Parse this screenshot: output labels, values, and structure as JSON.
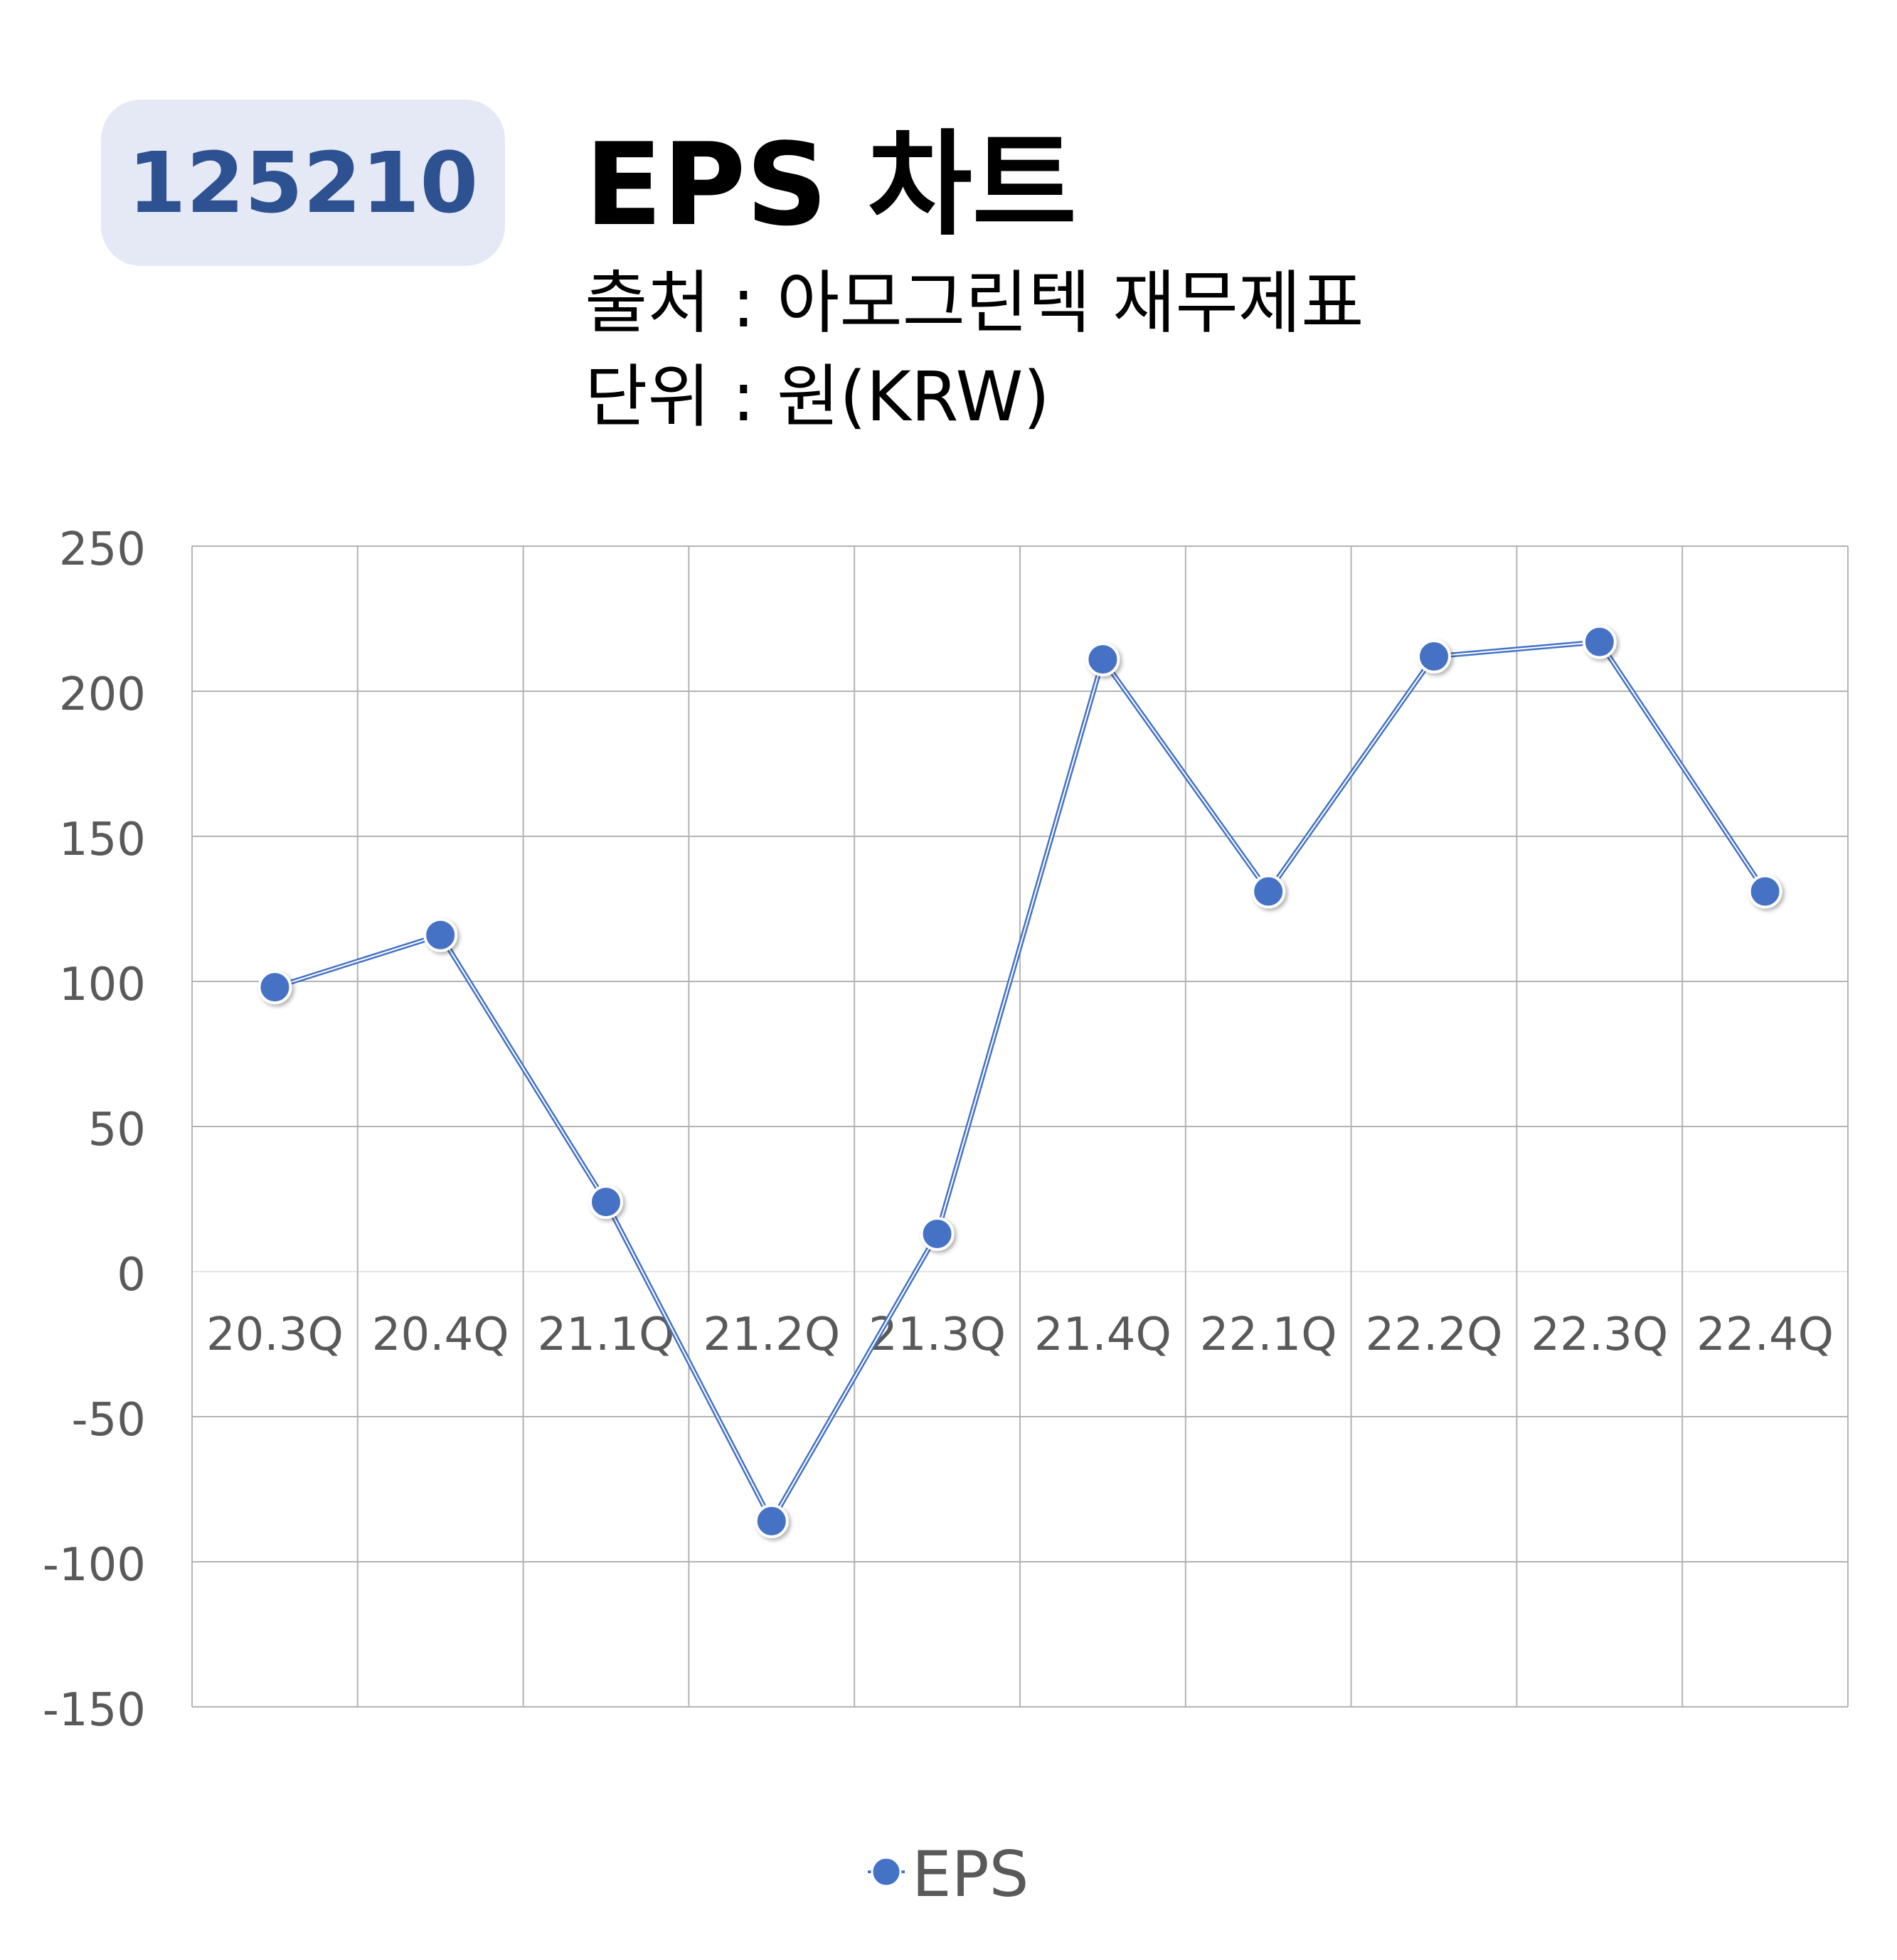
{
  "header": {
    "ticker": "125210",
    "title": "EPS 차트",
    "source": "출처 : 아모그린텍 재무제표",
    "unit": "단위 : 원(KRW)"
  },
  "colors": {
    "series": "#4472c4",
    "grid": "#b3b3b3",
    "tick_text": "#595959",
    "badge_bg": "#e4e9f5",
    "badge_text": "#2e5191"
  },
  "chart_data": {
    "type": "line",
    "categories": [
      "20.3Q",
      "20.4Q",
      "21.1Q",
      "21.2Q",
      "21.3Q",
      "21.4Q",
      "22.1Q",
      "22.2Q",
      "22.3Q",
      "22.4Q"
    ],
    "series": [
      {
        "name": "EPS",
        "values": [
          98,
          116,
          24,
          -86,
          13,
          211,
          131,
          212,
          217,
          131
        ]
      }
    ],
    "ylim": [
      -150,
      250
    ],
    "yticks": [
      250,
      200,
      150,
      100,
      50,
      0,
      -50,
      -100,
      -150
    ],
    "grid": true,
    "legend": "bottom-center"
  }
}
